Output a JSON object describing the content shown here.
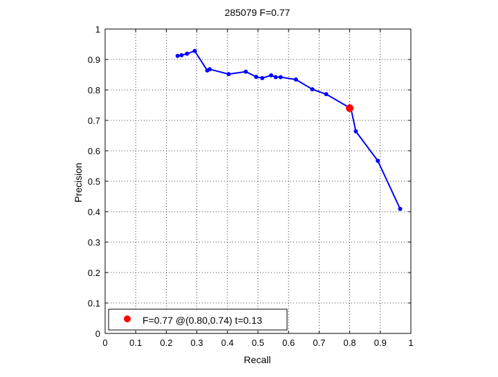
{
  "chart_data": {
    "type": "line",
    "title": "285079 F=0.77",
    "xlabel": "Recall",
    "ylabel": "Precision",
    "xlim": [
      0,
      1
    ],
    "ylim": [
      0,
      1
    ],
    "xticks": [
      "0",
      "0.1",
      "0.2",
      "0.3",
      "0.4",
      "0.5",
      "0.6",
      "0.7",
      "0.8",
      "0.9",
      "1"
    ],
    "yticks": [
      "0",
      "0.1",
      "0.2",
      "0.3",
      "0.4",
      "0.5",
      "0.6",
      "0.7",
      "0.8",
      "0.9",
      "1"
    ],
    "grid": true,
    "series": [
      {
        "color": "#0000ff",
        "x": [
          0.237,
          0.25,
          0.268,
          0.293,
          0.334,
          0.342,
          0.404,
          0.46,
          0.494,
          0.514,
          0.543,
          0.558,
          0.574,
          0.624,
          0.678,
          0.723,
          0.804,
          0.82,
          0.892,
          0.965
        ],
        "y": [
          0.912,
          0.914,
          0.919,
          0.928,
          0.864,
          0.868,
          0.852,
          0.86,
          0.843,
          0.839,
          0.848,
          0.842,
          0.842,
          0.834,
          0.802,
          0.786,
          0.739,
          0.664,
          0.567,
          0.409
        ]
      }
    ],
    "best_point": {
      "x": 0.8,
      "y": 0.74,
      "color": "#ff0000",
      "label": "F=0.77 @(0.80,0.74) t=0.13"
    },
    "legend": {
      "position": "bottom-left",
      "entries": [
        "F=0.77 @(0.80,0.74) t=0.13"
      ]
    }
  }
}
